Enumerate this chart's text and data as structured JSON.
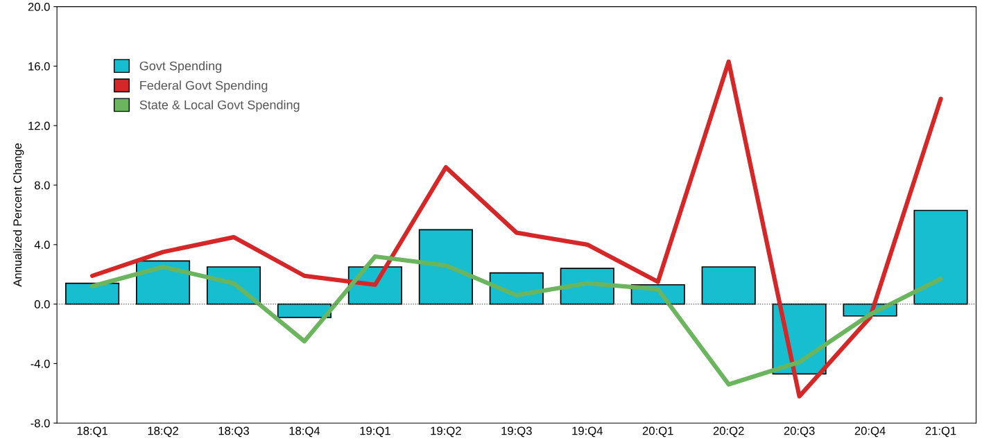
{
  "chart_data": {
    "type": "bar",
    "ylabel": "Annualized Percent Change",
    "categories": [
      "18:Q1",
      "18:Q2",
      "18:Q3",
      "18:Q4",
      "19:Q1",
      "19:Q2",
      "19:Q3",
      "19:Q4",
      "20:Q1",
      "20:Q2",
      "20:Q3",
      "20:Q4",
      "21:Q1"
    ],
    "series": [
      {
        "name": "Govt Spending",
        "color": "#17becf",
        "values": [
          1.4,
          2.9,
          2.5,
          -0.9,
          2.5,
          5.0,
          2.1,
          2.4,
          1.3,
          2.5,
          -4.7,
          -0.8,
          6.3
        ]
      },
      {
        "name": "Federal Govt Spending",
        "type": "line",
        "color": "#d62728",
        "values": [
          1.9,
          3.5,
          4.5,
          1.9,
          1.3,
          9.2,
          4.8,
          4.0,
          1.5,
          16.3,
          -6.2,
          -0.9,
          13.8
        ]
      },
      {
        "name": "State & Local Govt Spending",
        "type": "line",
        "color": "#6ab55e",
        "values": [
          1.2,
          2.5,
          1.4,
          -2.5,
          3.2,
          2.6,
          0.6,
          1.4,
          1.0,
          -5.4,
          -3.9,
          -0.7,
          1.7
        ]
      }
    ],
    "ylim": [
      -8,
      20
    ],
    "yticks": [
      {
        "value": -8,
        "label": "-8.0"
      },
      {
        "value": -4,
        "label": "-4.0"
      },
      {
        "value": 0,
        "label": "0.0"
      },
      {
        "value": 4,
        "label": "4.0"
      },
      {
        "value": 8,
        "label": "8.0"
      },
      {
        "value": 12,
        "label": "12.0"
      },
      {
        "value": 16,
        "label": "16.0"
      },
      {
        "value": 20,
        "label": "20.0"
      }
    ],
    "ref_lines": [
      {
        "axis": "y",
        "value": 0,
        "color": "#555555",
        "line_style": "dotted"
      }
    ],
    "grid": false,
    "legend": "top left"
  }
}
